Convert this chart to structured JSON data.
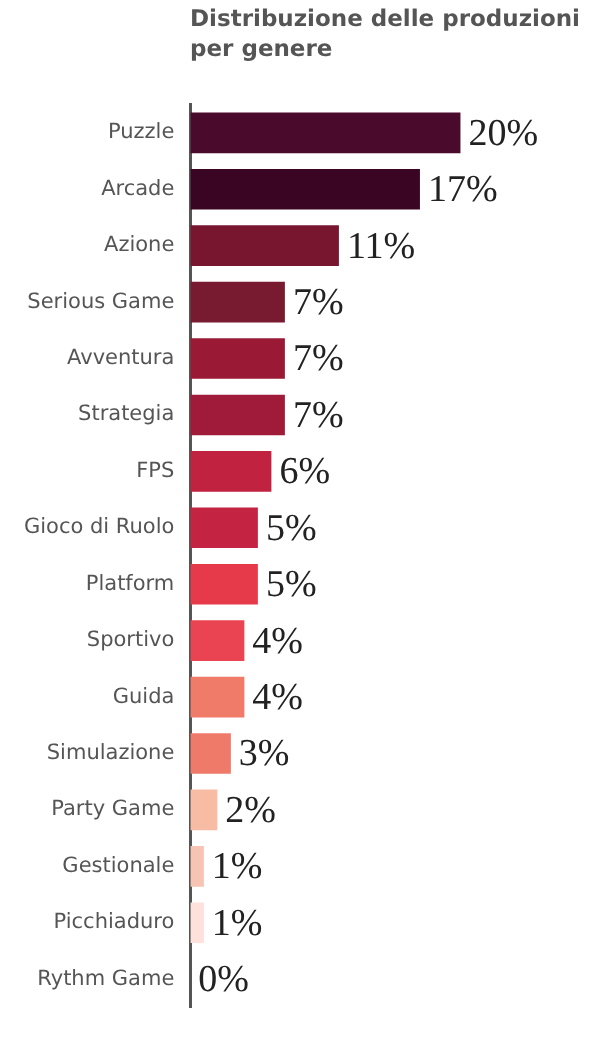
{
  "chart_data": {
    "type": "bar",
    "orientation": "horizontal",
    "title": "Distribuzione delle produzioni per genere",
    "categories": [
      "Puzzle",
      "Arcade",
      "Azione",
      "Serious Game",
      "Avventura",
      "Strategia",
      "FPS",
      "Gioco di Ruolo",
      "Platform",
      "Sportivo",
      "Guida",
      "Simulazione",
      "Party Game",
      "Gestionale",
      "Picchiaduro",
      "Rythm Game"
    ],
    "values": [
      20,
      17,
      11,
      7,
      7,
      7,
      6,
      5,
      5,
      4,
      4,
      3,
      2,
      1,
      1,
      0
    ],
    "value_labels": [
      "20%",
      "17%",
      "11%",
      "7%",
      "7%",
      "7%",
      "6%",
      "5%",
      "5%",
      "4%",
      "4%",
      "3%",
      "2%",
      "1%",
      "1%",
      "0%"
    ],
    "colors": [
      "#4a0a2c",
      "#3a0522",
      "#781630",
      "#781a30",
      "#9a1a36",
      "#a01b3a",
      "#c0223f",
      "#c42342",
      "#e63a4a",
      "#ea4352",
      "#f07b68",
      "#f07a6a",
      "#f8bba3",
      "#f7c3b3",
      "#fde1da",
      "#fde1da"
    ],
    "grid": false,
    "legend": false
  }
}
